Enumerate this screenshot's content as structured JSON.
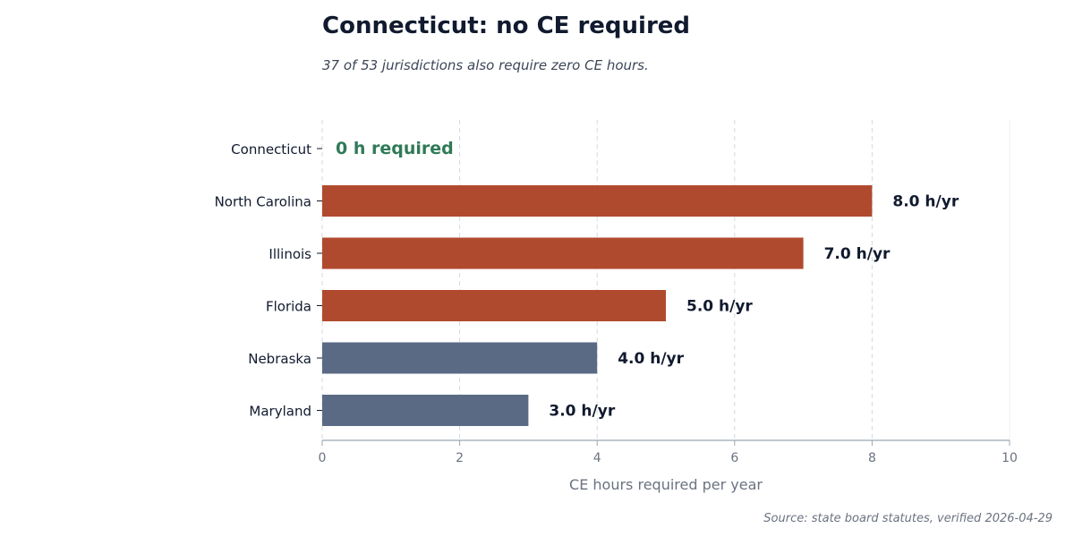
{
  "title": "Connecticut: no CE required",
  "subtitle": "37 of 53 jurisdictions also require zero CE hours.",
  "source": "Source: state board statutes, verified 2026-04-29",
  "colors": {
    "highlight": "#2f7a57",
    "above_five": "#b04a2f",
    "below_five": "#5a6a85",
    "text": "#111a2e",
    "muted": "#6b7380",
    "grid": "#d6d9de",
    "axis": "#9aa6b2"
  },
  "chart_data": {
    "type": "bar",
    "orientation": "horizontal",
    "categories": [
      "Connecticut",
      "North Carolina",
      "Illinois",
      "Florida",
      "Nebraska",
      "Maryland"
    ],
    "values": [
      0,
      8.0,
      7.0,
      5.0,
      4.0,
      3.0
    ],
    "bar_colors": [
      "#2f7a57",
      "#b04a2f",
      "#b04a2f",
      "#b04a2f",
      "#5a6a85",
      "#5a6a85"
    ],
    "data_labels": [
      "0 h required",
      "8.0 h/yr",
      "7.0 h/yr",
      "5.0 h/yr",
      "4.0 h/yr",
      "3.0 h/yr"
    ],
    "xlabel": "CE hours required per year",
    "ylabel": "",
    "xlim": [
      0,
      10
    ],
    "xticks": [
      0,
      2,
      4,
      6,
      8,
      10
    ],
    "xtick_labels": [
      "0",
      "2",
      "4",
      "6",
      "8",
      "10"
    ],
    "grid": "x, dashed",
    "legend": "none"
  }
}
